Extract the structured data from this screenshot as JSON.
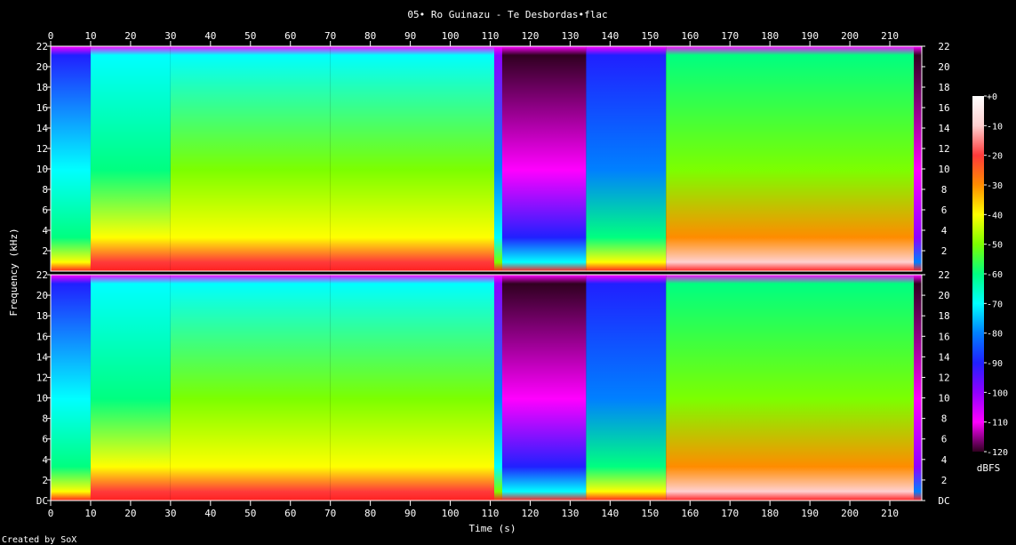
{
  "chart_data": {
    "type": "heatmap",
    "title": "05• Ro Guinazu - Te Desbordas•flac",
    "xlabel": "Time (s)",
    "ylabel": "Frequency (kHz)",
    "colorbar_label": "dBFS",
    "credit": "Created by SoX",
    "xlim": [
      0,
      218
    ],
    "ylim": [
      0,
      22
    ],
    "x_ticks": [
      0,
      10,
      20,
      30,
      40,
      50,
      60,
      70,
      80,
      90,
      100,
      110,
      120,
      130,
      140,
      150,
      160,
      170,
      180,
      190,
      200,
      210
    ],
    "y_tick_labels": [
      "DC",
      "2",
      "4",
      "6",
      "8",
      "10",
      "12",
      "14",
      "16",
      "18",
      "20",
      "22"
    ],
    "colorbar_ticks": [
      "+0",
      "-10",
      "-20",
      "-30",
      "-40",
      "-50",
      "-60",
      "-70",
      "-80",
      "-90",
      "-100",
      "-110",
      "-120"
    ],
    "colorbar_range": [
      -120,
      0
    ],
    "channels": [
      {
        "segments": [
          {
            "x": [
              0,
              10
            ],
            "level": -75
          },
          {
            "x": [
              10,
              30
            ],
            "level": -60
          },
          {
            "x": [
              30,
              70
            ],
            "level": -55
          },
          {
            "x": [
              70,
              111
            ],
            "level": -52
          },
          {
            "x": [
              111,
              113
            ],
            "level": -85
          },
          {
            "x": [
              113,
              134
            ],
            "level": -110
          },
          {
            "x": [
              134,
              154
            ],
            "level": -80
          },
          {
            "x": [
              154,
              216
            ],
            "level": -50
          },
          {
            "x": [
              216,
              218
            ],
            "level": -115
          }
        ]
      },
      {
        "segments": [
          {
            "x": [
              0,
              10
            ],
            "level": -75
          },
          {
            "x": [
              10,
              30
            ],
            "level": -60
          },
          {
            "x": [
              30,
              70
            ],
            "level": -55
          },
          {
            "x": [
              70,
              111
            ],
            "level": -52
          },
          {
            "x": [
              111,
              113
            ],
            "level": -85
          },
          {
            "x": [
              113,
              134
            ],
            "level": -110
          },
          {
            "x": [
              134,
              154
            ],
            "level": -80
          },
          {
            "x": [
              154,
              216
            ],
            "level": -50
          },
          {
            "x": [
              216,
              218
            ],
            "level": -115
          }
        ]
      }
    ],
    "colormap": [
      {
        "db": 0,
        "color": "#ffffff"
      },
      {
        "db": -10,
        "color": "#ffd0d0"
      },
      {
        "db": -20,
        "color": "#ff3a3a"
      },
      {
        "db": -30,
        "color": "#ff8c00"
      },
      {
        "db": -40,
        "color": "#ffff00"
      },
      {
        "db": -50,
        "color": "#7cff00"
      },
      {
        "db": -60,
        "color": "#00ff80"
      },
      {
        "db": -70,
        "color": "#00ffff"
      },
      {
        "db": -80,
        "color": "#0080ff"
      },
      {
        "db": -90,
        "color": "#2020ff"
      },
      {
        "db": -100,
        "color": "#9000ff"
      },
      {
        "db": -110,
        "color": "#ff00ff"
      },
      {
        "db": -120,
        "color": "#300020"
      }
    ]
  }
}
